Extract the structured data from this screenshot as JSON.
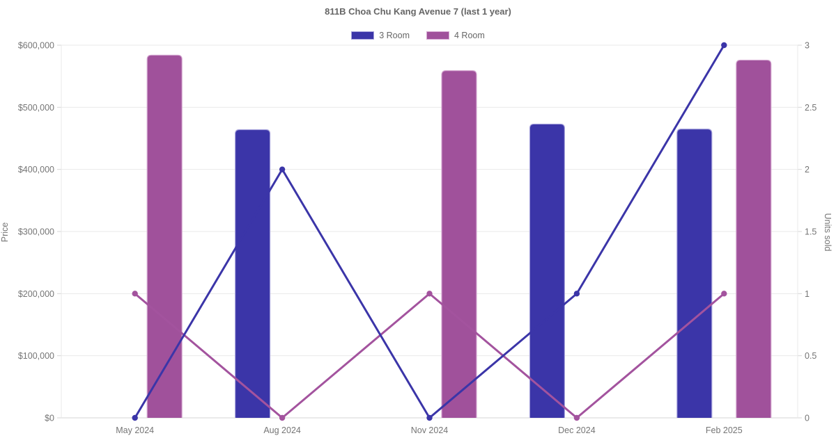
{
  "chart": {
    "title": "811B Choa Chu Kang Avenue 7 (last 1 year)",
    "legend": [
      {
        "label": "3 Room",
        "color": "#3b35a8",
        "border_color": "#a9a5dd"
      },
      {
        "label": "4 Room",
        "color": "#a0519b",
        "border_color": "#d5a8d1"
      }
    ]
  },
  "chart_data": {
    "type": "bar",
    "subtype": "combo-bar-line-dual-axis",
    "title": "811B Choa Chu Kang Avenue 7 (last 1 year)",
    "categories": [
      "May 2024",
      "Aug 2024",
      "Nov 2024",
      "Dec 2024",
      "Feb 2025"
    ],
    "series": [
      {
        "name": "3 Room",
        "role": "bar",
        "axis": "left",
        "unit": "price",
        "color": "#3b35a8",
        "border_color": "#a9a5dd",
        "values": [
          null,
          464000,
          null,
          473000,
          465000
        ]
      },
      {
        "name": "4 Room",
        "role": "bar",
        "axis": "left",
        "unit": "price",
        "color": "#a0519b",
        "border_color": "#d5a8d1",
        "values": [
          584000,
          null,
          559000,
          null,
          576000
        ]
      },
      {
        "name": "4 Room",
        "role": "line",
        "axis": "right",
        "unit": "units_sold",
        "color": "#a3539e",
        "values": [
          1,
          0,
          1,
          0,
          1
        ]
      },
      {
        "name": "3 Room",
        "role": "line",
        "axis": "right",
        "unit": "units_sold",
        "color": "#3b35a8",
        "values": [
          0,
          2,
          0,
          1,
          3
        ]
      }
    ],
    "left_axis": {
      "label": "Price",
      "min": 0,
      "max": 600000,
      "tick_labels": [
        "$0",
        "$100,000",
        "$200,000",
        "$300,000",
        "$400,000",
        "$500,000",
        "$600,000"
      ]
    },
    "right_axis": {
      "label": "Units sold",
      "min": 0,
      "max": 3,
      "tick_labels": [
        "0",
        "0.5",
        "1",
        "1.5",
        "2",
        "2.5",
        "3"
      ]
    },
    "x_axis": {
      "tick_labels": [
        "May 2024",
        "Aug 2024",
        "Nov 2024",
        "Dec 2024",
        "Feb 2025"
      ]
    },
    "grid": "horizontal",
    "legend_position": "top",
    "colors": {
      "grid": "#e9e9e9",
      "axis_line": "#d6d6d6",
      "text": "#757575",
      "background": "#ffffff"
    }
  }
}
